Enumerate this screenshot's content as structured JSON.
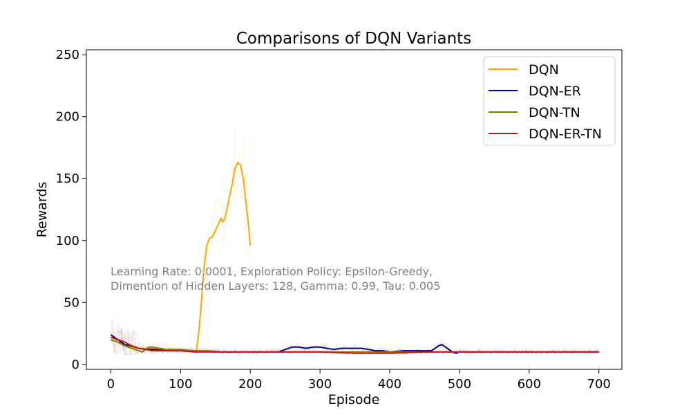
{
  "chart_data": {
    "type": "line",
    "title": "Comparisons of DQN Variants",
    "xlabel": "Episode",
    "ylabel": "Rewards",
    "xlim": [
      -35,
      733
    ],
    "ylim": [
      -4,
      254
    ],
    "xticks": [
      0,
      100,
      200,
      300,
      400,
      500,
      600,
      700
    ],
    "yticks": [
      0,
      50,
      100,
      150,
      200,
      250
    ],
    "grid": false,
    "legend_position": "top-right",
    "annotation": [
      "Learning Rate: 0.0001, Exploration Policy: Epsilon-Greedy,",
      "Dimention of Hidden Layers: 128, Gamma: 0.99, Tau: 0.005"
    ],
    "series": [
      {
        "name": "DQN",
        "color": "#ffa500",
        "x": [
          0,
          10,
          20,
          30,
          40,
          50,
          60,
          70,
          80,
          90,
          100,
          110,
          120,
          123,
          126,
          130,
          134,
          138,
          142,
          146,
          150,
          154,
          158,
          160,
          163,
          166,
          170,
          174,
          178,
          182,
          186,
          190,
          194,
          198,
          200
        ],
        "y": [
          20,
          18,
          16,
          14,
          13,
          13,
          13,
          12,
          12,
          12,
          11,
          11,
          10,
          12,
          25,
          50,
          80,
          97,
          102,
          103,
          108,
          113,
          118,
          115,
          117,
          124,
          135,
          145,
          158,
          163,
          161,
          150,
          130,
          110,
          96
        ]
      },
      {
        "name": "DQN-ER",
        "color": "#00007f",
        "x": [
          0,
          10,
          20,
          30,
          40,
          50,
          60,
          80,
          100,
          120,
          150,
          180,
          200,
          220,
          240,
          250,
          260,
          270,
          280,
          290,
          300,
          310,
          320,
          330,
          340,
          350,
          360,
          370,
          380,
          390,
          400,
          420,
          440,
          460,
          470,
          475,
          480,
          485,
          490,
          495,
          500,
          550,
          600,
          650,
          700
        ],
        "y": [
          24,
          20,
          16,
          15,
          13,
          12,
          12,
          11,
          11,
          11,
          10,
          10,
          10,
          10,
          10,
          12,
          14,
          14,
          13,
          14,
          14,
          13,
          12,
          13,
          13,
          13,
          13,
          12,
          11,
          11,
          10,
          11,
          11,
          11,
          15,
          16,
          14,
          12,
          10,
          9,
          10,
          10,
          10,
          10,
          10
        ]
      },
      {
        "name": "DQN-TN",
        "color": "#808000",
        "x": [
          0,
          10,
          20,
          30,
          40,
          45,
          50,
          55,
          60,
          70,
          80,
          100,
          120,
          140,
          160,
          180,
          200,
          250,
          300,
          350,
          400,
          450,
          500,
          550,
          600,
          650,
          700
        ],
        "y": [
          20,
          18,
          15,
          13,
          11,
          10,
          12,
          14,
          14,
          13,
          12,
          12,
          11,
          11,
          10,
          10,
          10,
          10,
          10,
          10,
          10,
          10,
          10,
          10,
          10,
          10,
          10
        ]
      },
      {
        "name": "DQN-ER-TN",
        "color": "#c0161d",
        "x": [
          0,
          10,
          20,
          30,
          40,
          50,
          60,
          70,
          80,
          100,
          120,
          150,
          200,
          250,
          300,
          350,
          400,
          450,
          500,
          550,
          600,
          650,
          700
        ],
        "y": [
          22,
          20,
          18,
          15,
          13,
          12,
          11,
          11,
          11,
          11,
          10,
          10,
          10,
          10,
          10,
          9,
          9,
          10,
          10,
          10,
          10,
          10,
          10
        ]
      }
    ]
  }
}
